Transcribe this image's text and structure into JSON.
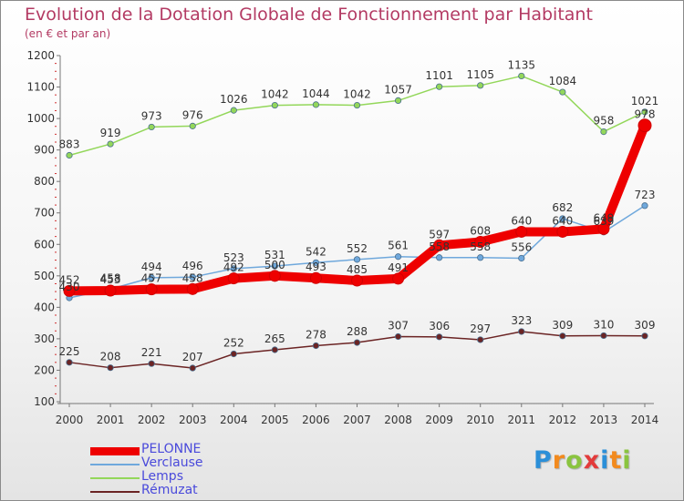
{
  "title": "Evolution de la Dotation Globale de Fonctionnement par Habitant",
  "subtitle": "(en € et par an)",
  "logo": {
    "text": "Proxiti",
    "letters": [
      "P",
      "r",
      "o",
      "x",
      "i",
      "t",
      "i"
    ],
    "colors": [
      "#2b8fd8",
      "#f28a1e",
      "#8ac43f",
      "#e33b3b",
      "#2b8fd8",
      "#f28a1e",
      "#8ac43f"
    ]
  },
  "chart_data": {
    "type": "line",
    "title": "Evolution de la Dotation Globale de Fonctionnement par Habitant",
    "subtitle": "(en € et par an)",
    "x": [
      "2000",
      "2001",
      "2002",
      "2003",
      "2004",
      "2005",
      "2006",
      "2007",
      "2008",
      "2009",
      "2010",
      "2011",
      "2012",
      "2013",
      "2014"
    ],
    "ylim": [
      100,
      1200
    ],
    "yticks": [
      "100",
      "200",
      "300",
      "400",
      "500",
      "600",
      "700",
      "800",
      "900",
      "1000",
      "1100",
      "1200"
    ],
    "grid": false,
    "legend_position": "bottom-left",
    "series": [
      {
        "name": "PELONNE",
        "color": "#ee0000",
        "values": [
          452,
          453,
          457,
          458,
          492,
          500,
          493,
          485,
          491,
          597,
          608,
          640,
          640,
          649,
          978
        ],
        "labels": [
          "452",
          "453",
          "457",
          "458",
          "492",
          "500",
          "493",
          "485",
          "491",
          "597",
          "608",
          "640",
          "640",
          "649",
          "978"
        ]
      },
      {
        "name": "Verclause",
        "color": "#6fa8dc",
        "values": [
          430,
          458,
          494,
          496,
          523,
          531,
          542,
          552,
          561,
          558,
          558,
          556,
          682,
          639,
          723
        ],
        "labels": [
          "430",
          "458",
          "494",
          "496",
          "523",
          "531",
          "542",
          "552",
          "561",
          "558",
          "558",
          "556",
          "682",
          "639",
          "723"
        ]
      },
      {
        "name": "Lemps",
        "color": "#93d75a",
        "values": [
          883,
          919,
          973,
          976,
          1026,
          1042,
          1044,
          1042,
          1057,
          1101,
          1105,
          1135,
          1084,
          958,
          1021
        ],
        "labels": [
          "883",
          "919",
          "973",
          "976",
          "1026",
          "1042",
          "1044",
          "1042",
          "1057",
          "1101",
          "1105",
          "1135",
          "1084",
          "958",
          "1021"
        ]
      },
      {
        "name": "Rémuzat",
        "color": "#6b2424",
        "values": [
          225,
          208,
          221,
          207,
          252,
          265,
          278,
          288,
          307,
          306,
          297,
          323,
          309,
          310,
          309
        ],
        "labels": [
          "225",
          "208",
          "221",
          "207",
          "252",
          "265",
          "278",
          "288",
          "307",
          "306",
          "297",
          "323",
          "309",
          "310",
          "309"
        ]
      }
    ]
  }
}
